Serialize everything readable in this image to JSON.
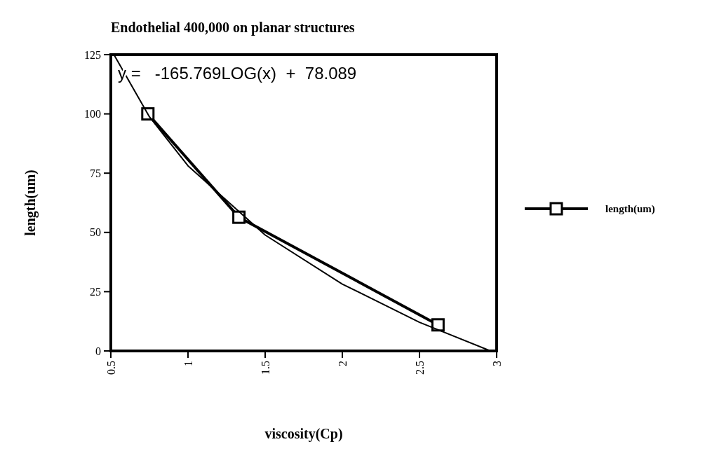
{
  "chart_data": {
    "type": "line",
    "title": "Endothelial 400,000 on planar structures",
    "xlabel": "viscosity(Cp)",
    "ylabel": "length(um)",
    "annotations": [
      "y =   -165.769LOG(x)  +  78.089"
    ],
    "x": [
      0.74,
      1.33,
      2.62
    ],
    "series": [
      {
        "name": "length(um)",
        "color": "#000000",
        "values": [
          100,
          56.4,
          11
        ],
        "marker": "square"
      },
      {
        "type": "line",
        "color": "#000000",
        "x": [
          0.52,
          0.75,
          1,
          1.5,
          2,
          2.5,
          2.96
        ],
        "values": [
          125,
          98.8,
          78.1,
          48.9,
          28.2,
          12.1,
          0
        ],
        "marker": "none"
      }
    ],
    "xlim": [
      0.5,
      3
    ],
    "xticks": [
      0.5,
      1,
      1.5,
      2,
      2.5,
      3
    ],
    "ylim": [
      0,
      125
    ],
    "yticks": [
      0,
      25,
      50,
      75,
      100,
      125
    ],
    "grid": false,
    "legend": "right",
    "line_style": "solid"
  }
}
